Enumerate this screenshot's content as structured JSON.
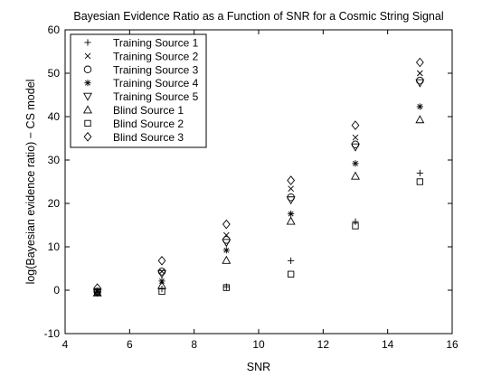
{
  "chart_data": {
    "type": "scatter",
    "title": "Bayesian Evidence Ratio as a Function of SNR for a Cosmic String Signal",
    "xlabel": "SNR",
    "ylabel": "log(Bayesian evidence ratio) − CS model",
    "xlim": [
      4,
      16
    ],
    "ylim": [
      -10,
      60
    ],
    "xticks": [
      4,
      6,
      8,
      10,
      12,
      14,
      16
    ],
    "yticks": [
      -10,
      0,
      10,
      20,
      30,
      40,
      50,
      60
    ],
    "grid": false,
    "legend_position": "top-left",
    "x": [
      5,
      7,
      9,
      11,
      13,
      15
    ],
    "series": [
      {
        "name": "Training Source 1",
        "marker": "plus",
        "values": [
          -0.4,
          0.3,
          0.8,
          6.8,
          15.8,
          27.0
        ]
      },
      {
        "name": "Training Source 2",
        "marker": "x",
        "values": [
          -0.2,
          4.3,
          12.7,
          23.4,
          35.2,
          50.0
        ]
      },
      {
        "name": "Training Source 3",
        "marker": "circle",
        "values": [
          -0.3,
          4.3,
          11.6,
          21.4,
          33.6,
          48.3
        ]
      },
      {
        "name": "Training Source 4",
        "marker": "star",
        "values": [
          -0.4,
          2.1,
          9.2,
          17.6,
          29.2,
          42.3
        ]
      },
      {
        "name": "Training Source 5",
        "marker": "triangle-down",
        "values": [
          -0.5,
          3.8,
          11.0,
          20.8,
          33.0,
          47.8
        ]
      },
      {
        "name": "Blind Source 1",
        "marker": "triangle-up",
        "values": [
          -0.6,
          1.1,
          6.9,
          15.9,
          26.3,
          39.3
        ]
      },
      {
        "name": "Blind Source 2",
        "marker": "square",
        "values": [
          -0.5,
          -0.3,
          0.6,
          3.7,
          14.8,
          25.0
        ]
      },
      {
        "name": "Blind Source 3",
        "marker": "diamond",
        "values": [
          0.5,
          6.8,
          15.2,
          25.3,
          38.0,
          52.5
        ]
      }
    ]
  }
}
